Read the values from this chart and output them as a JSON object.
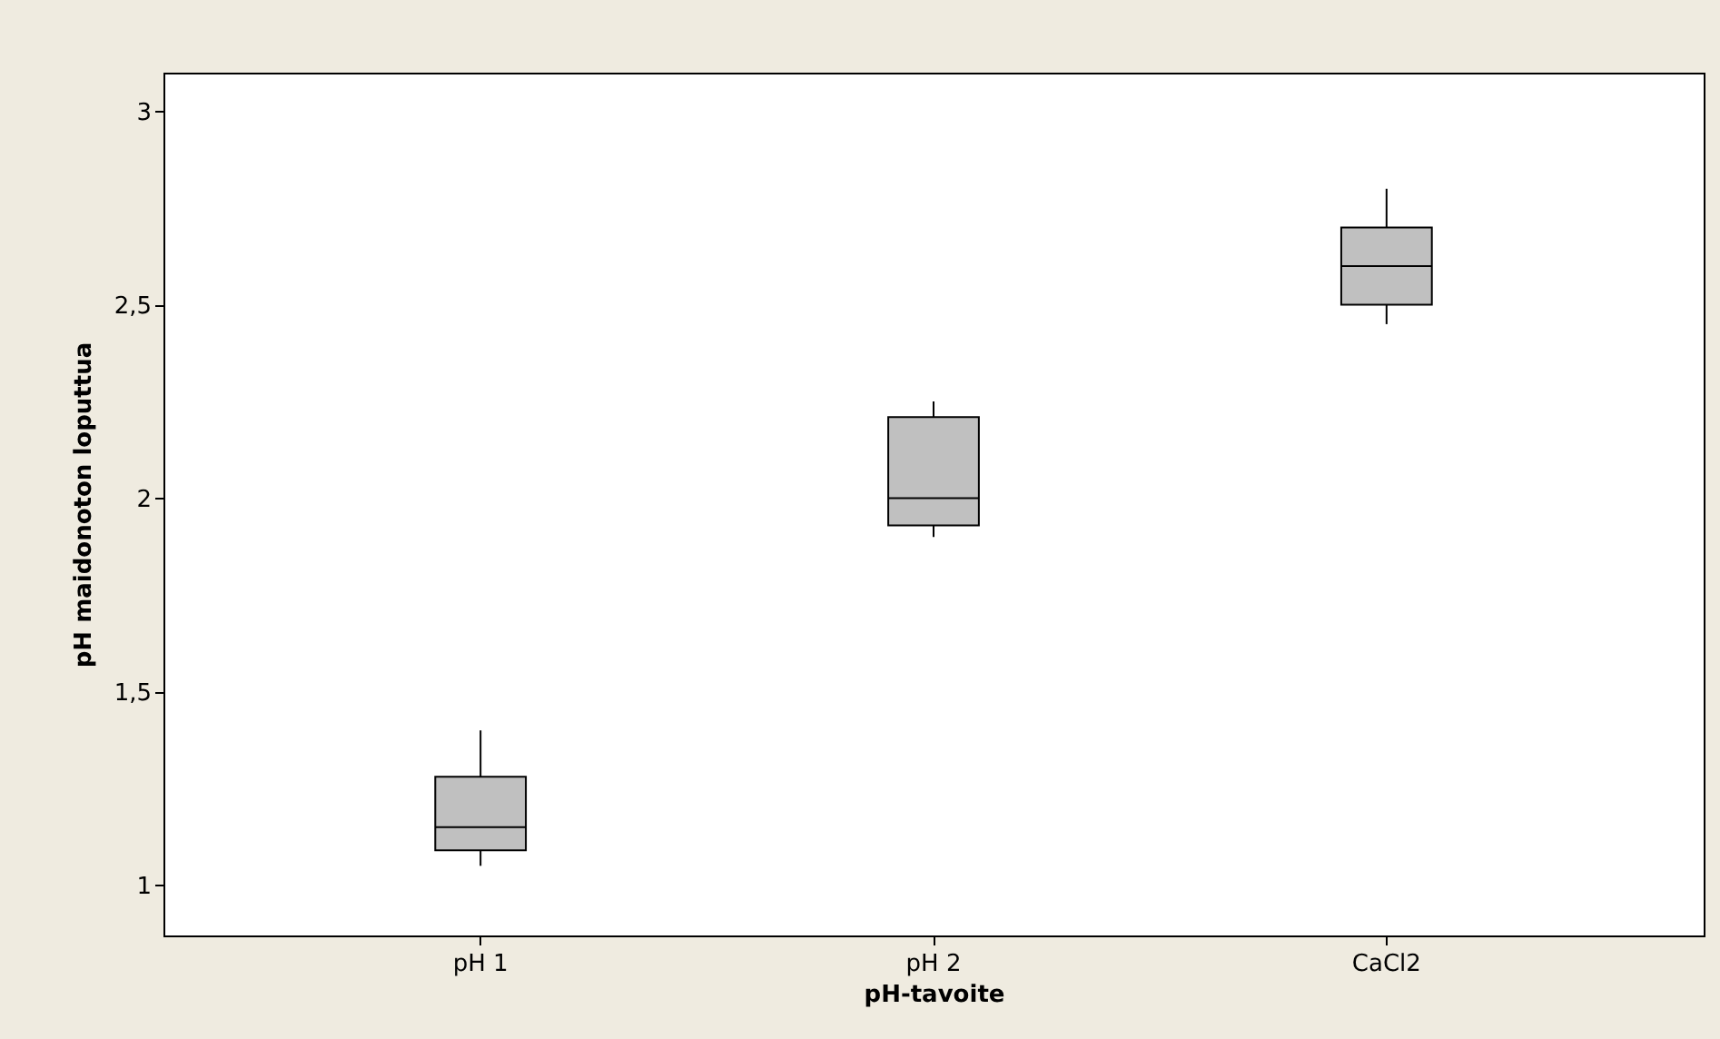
{
  "chart_data": {
    "type": "box",
    "xlabel": "pH-tavoite",
    "ylabel": "pH maidonoton loputtua",
    "categories": [
      "pH 1",
      "pH 2",
      "CaCl2"
    ],
    "color": "#c0c0c0",
    "boxes": [
      {
        "low": 1.05,
        "q1": 1.09,
        "median": 1.15,
        "q3": 1.28,
        "high": 1.4
      },
      {
        "low": 1.9,
        "q1": 1.93,
        "median": 2.0,
        "q3": 2.21,
        "high": 2.25
      },
      {
        "low": 2.45,
        "q1": 2.5,
        "median": 2.6,
        "q3": 2.7,
        "high": 2.8
      }
    ],
    "ylim": [
      0.87,
      3.1
    ],
    "yticks": [
      1,
      {
        "value": 1.5,
        "label": "1,5"
      },
      2,
      {
        "value": 2.5,
        "label": "2,5"
      },
      3
    ],
    "grid": false
  }
}
